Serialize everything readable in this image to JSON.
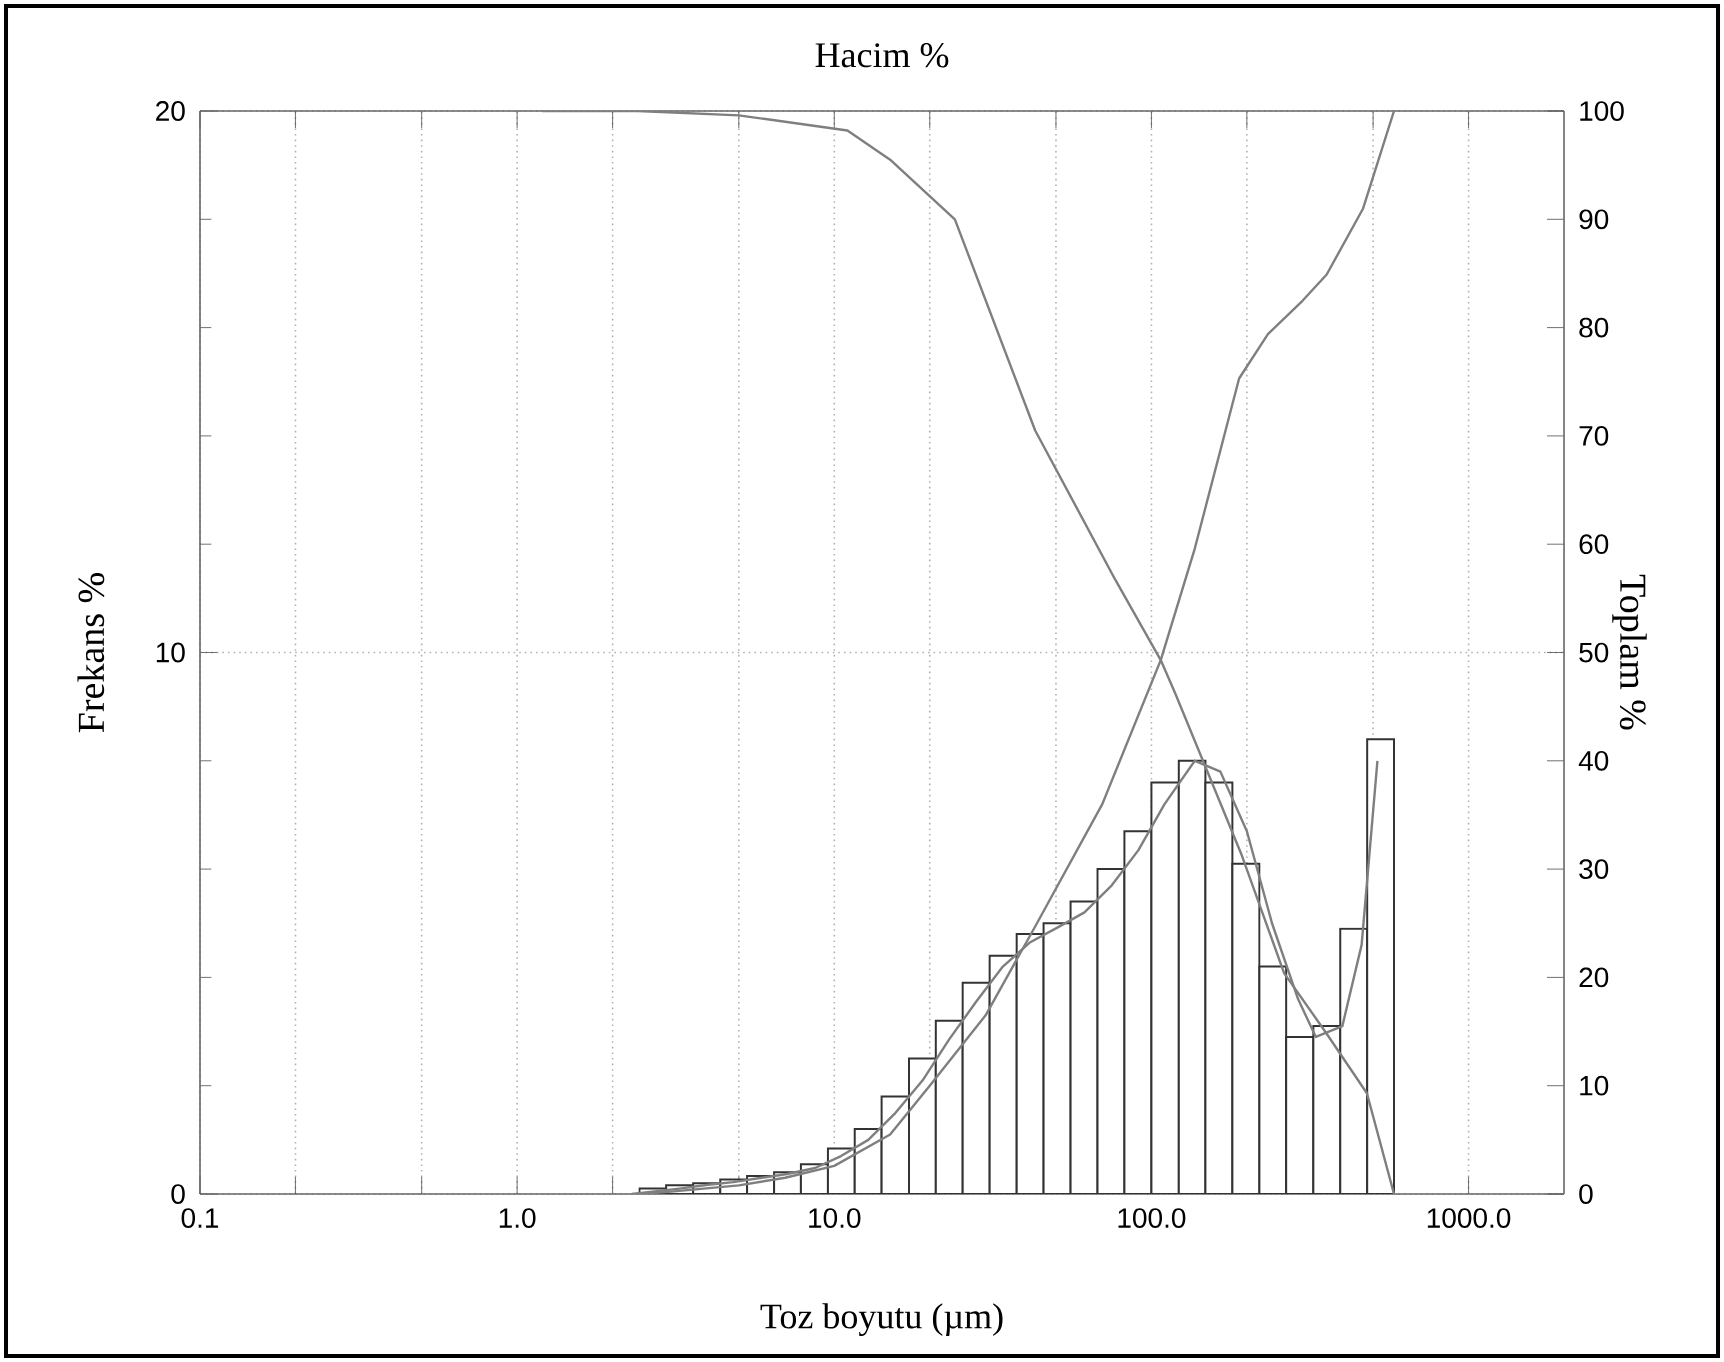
{
  "chart_data": {
    "type": "histogram",
    "title": "Hacim %",
    "xlabel": "Toz boyutu (µm)",
    "ylabel": "Frekans %",
    "y2label": "Toplam %",
    "log": "x",
    "grid": true,
    "marker": "none",
    "line_style": "solid",
    "xlim": [
      0.1,
      2000
    ],
    "ylim": [
      0,
      20
    ],
    "y2lim": [
      0,
      100
    ],
    "xticks": [
      {
        "value": 0.1,
        "label": "0.1"
      },
      {
        "value": 0.2,
        "label": null
      },
      {
        "value": 0.5,
        "label": null
      },
      {
        "value": 1,
        "label": "1.0"
      },
      {
        "value": 2,
        "label": null
      },
      {
        "value": 5,
        "label": null
      },
      {
        "value": 10,
        "label": "10.0"
      },
      {
        "value": 20,
        "label": null
      },
      {
        "value": 50,
        "label": null
      },
      {
        "value": 100,
        "label": "100.0"
      },
      {
        "value": 200,
        "label": null
      },
      {
        "value": 500,
        "label": null
      },
      {
        "value": 1000,
        "label": "1000.0"
      }
    ],
    "yticks": [
      0,
      10,
      20
    ],
    "y2ticks": [
      0,
      10,
      20,
      30,
      40,
      50,
      60,
      70,
      80,
      90,
      100
    ],
    "series": [
      {
        "color": "#333333",
        "bins": [
          2.43,
          2.95,
          3.59,
          4.37,
          5.31,
          6.46,
          7.85,
          9.55,
          11.6,
          14.1,
          17.2,
          20.9,
          25.4,
          30.9,
          37.6,
          45.7,
          55.6,
          67.6,
          82.2,
          100,
          122,
          148,
          180,
          219,
          266,
          324,
          394,
          479,
          582
        ],
        "values": [
          0.1,
          0.16,
          0.2,
          0.27,
          0.33,
          0.4,
          0.55,
          0.84,
          1.2,
          1.8,
          2.5,
          3.2,
          3.9,
          4.4,
          4.8,
          5.0,
          5.4,
          6.0,
          6.7,
          7.6,
          8.0,
          7.6,
          6.1,
          4.2,
          2.9,
          3.1,
          4.9,
          8.4
        ]
      },
      {
        "type": "line",
        "color": "#7f7f7f",
        "x": [
          2.3,
          3.25,
          4.0,
          4.8,
          5.9,
          7.1,
          8.7,
          10.5,
          12.8,
          15.6,
          19,
          23,
          28,
          34,
          41.5,
          50.5,
          61.5,
          75,
          91,
          110,
          137,
          165,
          200,
          240,
          290,
          330,
          400,
          460,
          516
        ],
        "values": [
          0,
          0.1,
          0.17,
          0.22,
          0.3,
          0.37,
          0.48,
          0.7,
          1.0,
          1.5,
          2.1,
          2.85,
          3.55,
          4.2,
          4.65,
          4.92,
          5.2,
          5.7,
          6.35,
          7.2,
          8.0,
          7.8,
          6.7,
          5.0,
          3.6,
          2.9,
          3.1,
          4.6,
          8.0
        ]
      },
      {
        "type": "line",
        "color": "#7f7f7f",
        "axis": "y2",
        "x": [
          2.4,
          3,
          5,
          7,
          10,
          15,
          20,
          30,
          43,
          70,
          107,
          137,
          189,
          233,
          300,
          357,
          465,
          582
        ],
        "values": [
          0,
          0.2,
          0.8,
          1.5,
          2.6,
          5.5,
          10,
          16.5,
          24.7,
          36,
          49.3,
          59.6,
          75.3,
          79.4,
          82.5,
          84.9,
          91,
          100
        ]
      },
      {
        "type": "line",
        "color": "#7f7f7f",
        "axis": "y2",
        "x": [
          1.2,
          2.4,
          5,
          11,
          15,
          24,
          43,
          77,
          107,
          119,
          192,
          262,
          357,
          478,
          582
        ],
        "values": [
          100,
          100,
          99.6,
          98.2,
          95.5,
          90,
          70.5,
          56.7,
          49.3,
          46.2,
          31.4,
          20.4,
          14.8,
          9.3,
          0
        ]
      }
    ]
  }
}
